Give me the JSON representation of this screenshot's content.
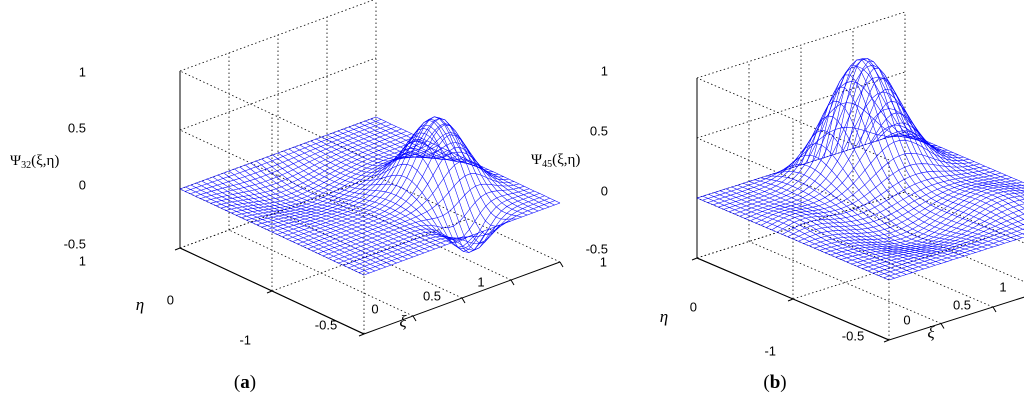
{
  "panels": [
    {
      "panel_label": "a",
      "zlabel_sym": "Ψ",
      "zlabel_sub": "32",
      "zlabel_args": "(ξ,η)",
      "xlabel": "ξ",
      "ylabel": "η",
      "x_ticks": [
        "-0.5",
        "0",
        "0.5",
        "1"
      ],
      "y_ticks": [
        "1",
        "0",
        "-1"
      ],
      "z_ticks": [
        "1",
        "0.5",
        "0",
        "-0.5"
      ]
    },
    {
      "panel_label": "b",
      "zlabel_sym": "Ψ",
      "zlabel_sub": "45",
      "zlabel_args": "(ξ,η)",
      "xlabel": "ξ",
      "ylabel": "η",
      "x_ticks": [
        "-0.5",
        "0",
        "0.5",
        "1"
      ],
      "y_ticks": [
        "1",
        "0",
        "-1"
      ],
      "z_ticks": [
        "1",
        "0.5",
        "0",
        "-0.5"
      ]
    }
  ],
  "chart_data": [
    {
      "type": "surface",
      "mesh_color": "#0000ff",
      "x_range": [
        -1,
        1
      ],
      "y_range": [
        -1,
        1
      ],
      "zlim": [
        -0.5,
        1
      ],
      "grid": true,
      "surface_features": [
        {
          "xi": 0.5,
          "eta": -0.2,
          "height": 0.6,
          "sigma": 0.22
        },
        {
          "xi": 0.3,
          "eta": -0.8,
          "height": -0.38,
          "sigma": 0.16
        },
        {
          "xi": -0.3,
          "eta": 0.5,
          "height": -0.1,
          "sigma": 0.35
        },
        {
          "xi": 0.9,
          "eta": 0.1,
          "height": -0.05,
          "sigma": 0.2
        }
      ]
    },
    {
      "type": "surface",
      "mesh_color": "#0000ff",
      "x_range": [
        -1,
        1
      ],
      "y_range": [
        -1,
        1
      ],
      "zlim": [
        -0.5,
        1
      ],
      "grid": true,
      "surface_features": [
        {
          "xi": 0.3,
          "eta": 0.75,
          "height": 1.05,
          "sigma": 0.28
        },
        {
          "xi": -0.2,
          "eta": -0.3,
          "height": -0.12,
          "sigma": 0.3
        },
        {
          "xi": 0.6,
          "eta": -0.4,
          "height": 0.08,
          "sigma": 0.25
        },
        {
          "xi": -0.8,
          "eta": 0.2,
          "height": 0.06,
          "sigma": 0.2
        }
      ]
    }
  ]
}
